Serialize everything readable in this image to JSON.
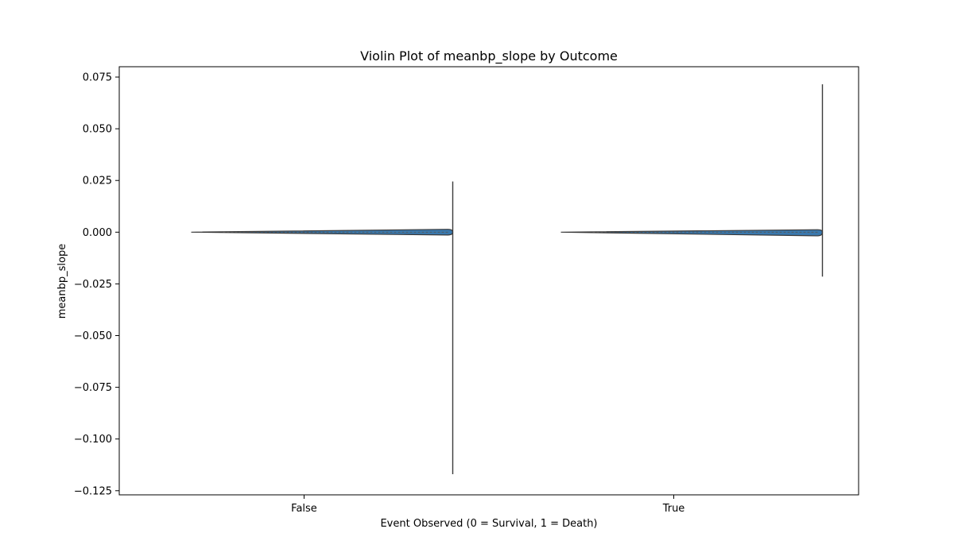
{
  "chart_data": {
    "type": "violin",
    "title": "Violin Plot of meanbp_slope by Outcome",
    "xlabel": "Event Observed (0 = Survival, 1 = Death)",
    "ylabel": "meanbp_slope",
    "categories": [
      "False",
      "True"
    ],
    "ylim": [
      -0.127,
      0.08
    ],
    "yticks": [
      0.075,
      0.05,
      0.025,
      0.0,
      -0.025,
      -0.05,
      -0.075,
      -0.1,
      -0.125
    ],
    "ytick_labels": [
      "0.075",
      "0.050",
      "0.025",
      "0.000",
      "−0.025",
      "−0.050",
      "−0.075",
      "−0.100",
      "−0.125"
    ],
    "series": [
      {
        "category": "False",
        "min": -0.117,
        "max": 0.0245,
        "q1": -0.0008,
        "median": 0.0,
        "q3": 0.0012
      },
      {
        "category": "True",
        "min": -0.0215,
        "max": 0.0715,
        "q1": -0.0012,
        "median": 0.0,
        "q3": 0.001
      }
    ],
    "colors": {
      "violin_fill": "#3a78ad",
      "violin_edge": "#3b3b3b",
      "whisker": "#3b3b3b",
      "axis": "#000000"
    },
    "grid": false
  }
}
